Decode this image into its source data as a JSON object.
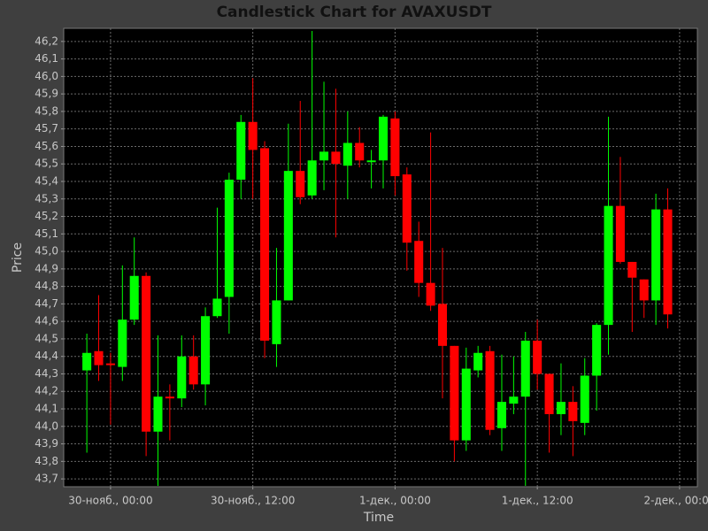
{
  "chart_data": {
    "type": "candlestick",
    "title": "Candlestick Chart for AVAXUSDT",
    "x_label": "Time",
    "y_label": "Price",
    "x": [
      -2,
      -1,
      0,
      1,
      2,
      3,
      4,
      5,
      6,
      7,
      8,
      9,
      10,
      11,
      12,
      13,
      14,
      15,
      16,
      17,
      18,
      19,
      20,
      21,
      22,
      23,
      24,
      25,
      26,
      27,
      28,
      29,
      30,
      31,
      32,
      33,
      34,
      35,
      36,
      37,
      38,
      39,
      40,
      41,
      42,
      43,
      44,
      45,
      46,
      47
    ],
    "open": [
      44.32,
      44.43,
      44.36,
      44.34,
      44.61,
      44.86,
      43.97,
      44.17,
      44.16,
      44.4,
      44.24,
      44.63,
      44.74,
      45.41,
      45.74,
      45.59,
      44.47,
      44.72,
      45.46,
      45.32,
      45.52,
      45.57,
      45.49,
      45.62,
      45.51,
      45.52,
      45.76,
      45.44,
      45.06,
      44.82,
      44.7,
      44.46,
      43.92,
      44.32,
      44.43,
      43.99,
      44.13,
      44.17,
      44.49,
      44.3,
      44.07,
      44.14,
      44.02,
      44.29,
      44.58,
      45.26,
      44.94,
      44.84,
      44.72,
      45.24
    ],
    "high": [
      44.53,
      44.75,
      44.42,
      44.92,
      45.08,
      44.88,
      44.52,
      44.24,
      44.52,
      44.52,
      44.68,
      45.25,
      45.45,
      45.78,
      45.99,
      45.63,
      45.02,
      45.73,
      45.86,
      46.26,
      45.97,
      45.93,
      45.8,
      45.71,
      45.58,
      45.78,
      45.8,
      45.48,
      45.17,
      45.68,
      45.02,
      44.46,
      44.45,
      44.46,
      44.46,
      44.41,
      44.4,
      44.54,
      44.61,
      44.3,
      44.36,
      44.23,
      44.39,
      44.59,
      45.77,
      45.54,
      44.94,
      44.84,
      45.33,
      45.36
    ],
    "low": [
      43.85,
      44.26,
      44.01,
      44.26,
      44.58,
      43.83,
      43.66,
      43.92,
      44.11,
      44.21,
      44.12,
      44.62,
      44.53,
      45.3,
      45.3,
      44.39,
      44.34,
      44.72,
      45.27,
      45.3,
      45.35,
      45.08,
      45.3,
      45.48,
      45.36,
      45.36,
      45.32,
      44.89,
      44.74,
      44.66,
      44.16,
      43.8,
      43.86,
      44.28,
      43.95,
      43.86,
      44.07,
      43.66,
      44.21,
      43.85,
      43.95,
      43.83,
      43.95,
      44.09,
      44.41,
      44.93,
      44.54,
      44.62,
      44.58,
      44.56
    ],
    "close": [
      44.42,
      44.35,
      44.35,
      44.61,
      44.86,
      43.97,
      44.17,
      44.16,
      44.4,
      44.24,
      44.63,
      44.73,
      45.41,
      45.74,
      45.58,
      44.49,
      44.72,
      45.46,
      45.31,
      45.52,
      45.57,
      45.5,
      45.62,
      45.52,
      45.52,
      45.77,
      45.43,
      45.05,
      44.82,
      44.69,
      44.46,
      43.92,
      44.33,
      44.42,
      43.98,
      44.14,
      44.17,
      44.49,
      44.3,
      44.07,
      44.14,
      44.03,
      44.29,
      44.58,
      45.26,
      44.94,
      44.85,
      44.72,
      45.24,
      44.64
    ],
    "up_color": "#00ff00",
    "down_color": "#ff0000",
    "xlim": [
      -3.95,
      49.5
    ],
    "xticks": [
      {
        "value": 0,
        "label": "30-нояб., 00:00"
      },
      {
        "value": 12,
        "label": "30-нояб., 12:00"
      },
      {
        "value": 24,
        "label": "1-дек., 00:00"
      },
      {
        "value": 36,
        "label": "1-дек., 12:00"
      },
      {
        "value": 48,
        "label": "2-дек., 00:00"
      }
    ],
    "ylim": [
      43.655,
      46.275
    ],
    "yticks": [
      {
        "value": 43.7,
        "label": "43,7"
      },
      {
        "value": 43.8,
        "label": "43,8"
      },
      {
        "value": 43.9,
        "label": "43,9"
      },
      {
        "value": 44.0,
        "label": "44,0"
      },
      {
        "value": 44.1,
        "label": "44,1"
      },
      {
        "value": 44.2,
        "label": "44,2"
      },
      {
        "value": 44.3,
        "label": "44,3"
      },
      {
        "value": 44.4,
        "label": "44,4"
      },
      {
        "value": 44.5,
        "label": "44,5"
      },
      {
        "value": 44.6,
        "label": "44,6"
      },
      {
        "value": 44.7,
        "label": "44,7"
      },
      {
        "value": 44.8,
        "label": "44,8"
      },
      {
        "value": 44.9,
        "label": "44,9"
      },
      {
        "value": 45.0,
        "label": "45,0"
      },
      {
        "value": 45.1,
        "label": "45,1"
      },
      {
        "value": 45.2,
        "label": "45,2"
      },
      {
        "value": 45.3,
        "label": "45,3"
      },
      {
        "value": 45.4,
        "label": "45,4"
      },
      {
        "value": 45.5,
        "label": "45,5"
      },
      {
        "value": 45.6,
        "label": "45,6"
      },
      {
        "value": 45.7,
        "label": "45,7"
      },
      {
        "value": 45.8,
        "label": "45,8"
      },
      {
        "value": 45.9,
        "label": "45,9"
      },
      {
        "value": 46.0,
        "label": "46,0"
      },
      {
        "value": 46.1,
        "label": "46,1"
      },
      {
        "value": 46.2,
        "label": "46,2"
      }
    ],
    "grid": true
  }
}
